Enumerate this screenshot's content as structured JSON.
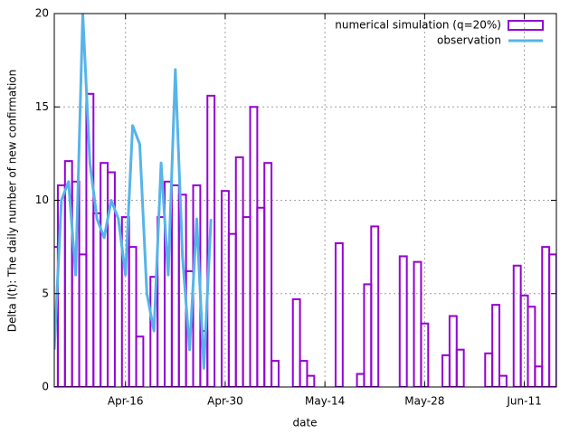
{
  "chart_data": {
    "type": "bar",
    "xlabel": "date",
    "ylabel": "Delta I(t): The daily number of new confirmation",
    "categories": [
      null,
      null,
      null,
      null,
      null,
      null,
      null,
      null,
      null,
      null,
      "Apr-16",
      null,
      null,
      null,
      null,
      null,
      null,
      null,
      null,
      null,
      null,
      null,
      null,
      null,
      "Apr-30",
      null,
      null,
      null,
      null,
      null,
      null,
      null,
      null,
      null,
      null,
      null,
      null,
      null,
      "May-14",
      null,
      null,
      null,
      null,
      null,
      null,
      null,
      null,
      null,
      null,
      null,
      null,
      null,
      "May-28",
      null,
      null,
      null,
      null,
      null,
      null,
      null,
      null,
      null,
      null,
      null,
      null,
      null,
      "Jun-11",
      null,
      null,
      null,
      null
    ],
    "series": [
      {
        "name": "numerical simulation (q=20%)",
        "type": "bar",
        "color": "#9400d3",
        "values": [
          7.5,
          10.8,
          12.1,
          11.0,
          7.1,
          15.7,
          9.3,
          12.0,
          11.5,
          0,
          9.1,
          7.5,
          2.7,
          0,
          5.9,
          9.1,
          11.0,
          10.8,
          10.3,
          6.2,
          10.8,
          3.0,
          15.6,
          0,
          10.5,
          8.2,
          12.3,
          9.1,
          15.0,
          9.6,
          12.0,
          1.4,
          0,
          0,
          4.7,
          1.4,
          0.6,
          0,
          0,
          0,
          7.7,
          0,
          0,
          0.7,
          5.5,
          8.6,
          0,
          0,
          0,
          7.0,
          0,
          6.7,
          3.4,
          0,
          0,
          1.7,
          3.8,
          2.0,
          0,
          0,
          0,
          1.8,
          4.4,
          0.6,
          0,
          6.5,
          4.9,
          4.3,
          1.1,
          7.5,
          7.1
        ]
      },
      {
        "name": "observation",
        "type": "line",
        "color": "#56b4e9",
        "values": [
          2,
          10,
          11,
          6,
          20,
          12,
          9,
          8,
          10,
          9,
          6,
          14,
          13,
          5,
          3,
          12,
          6,
          17,
          7,
          2,
          9,
          1,
          9,
          null,
          null,
          null,
          null,
          null,
          null,
          null,
          null,
          null,
          null,
          null,
          null,
          null,
          null,
          null,
          null,
          null,
          null,
          null,
          null,
          null,
          null,
          null,
          null,
          null,
          null,
          null,
          null,
          null,
          null,
          null,
          null,
          null,
          null,
          null,
          null,
          null,
          null,
          null,
          null,
          null,
          null,
          null,
          null,
          null,
          null,
          null,
          null
        ]
      }
    ],
    "ylim": [
      0,
      20
    ],
    "yticks": [
      0,
      5,
      10,
      15,
      20
    ],
    "grid": true,
    "legend": "top right"
  }
}
